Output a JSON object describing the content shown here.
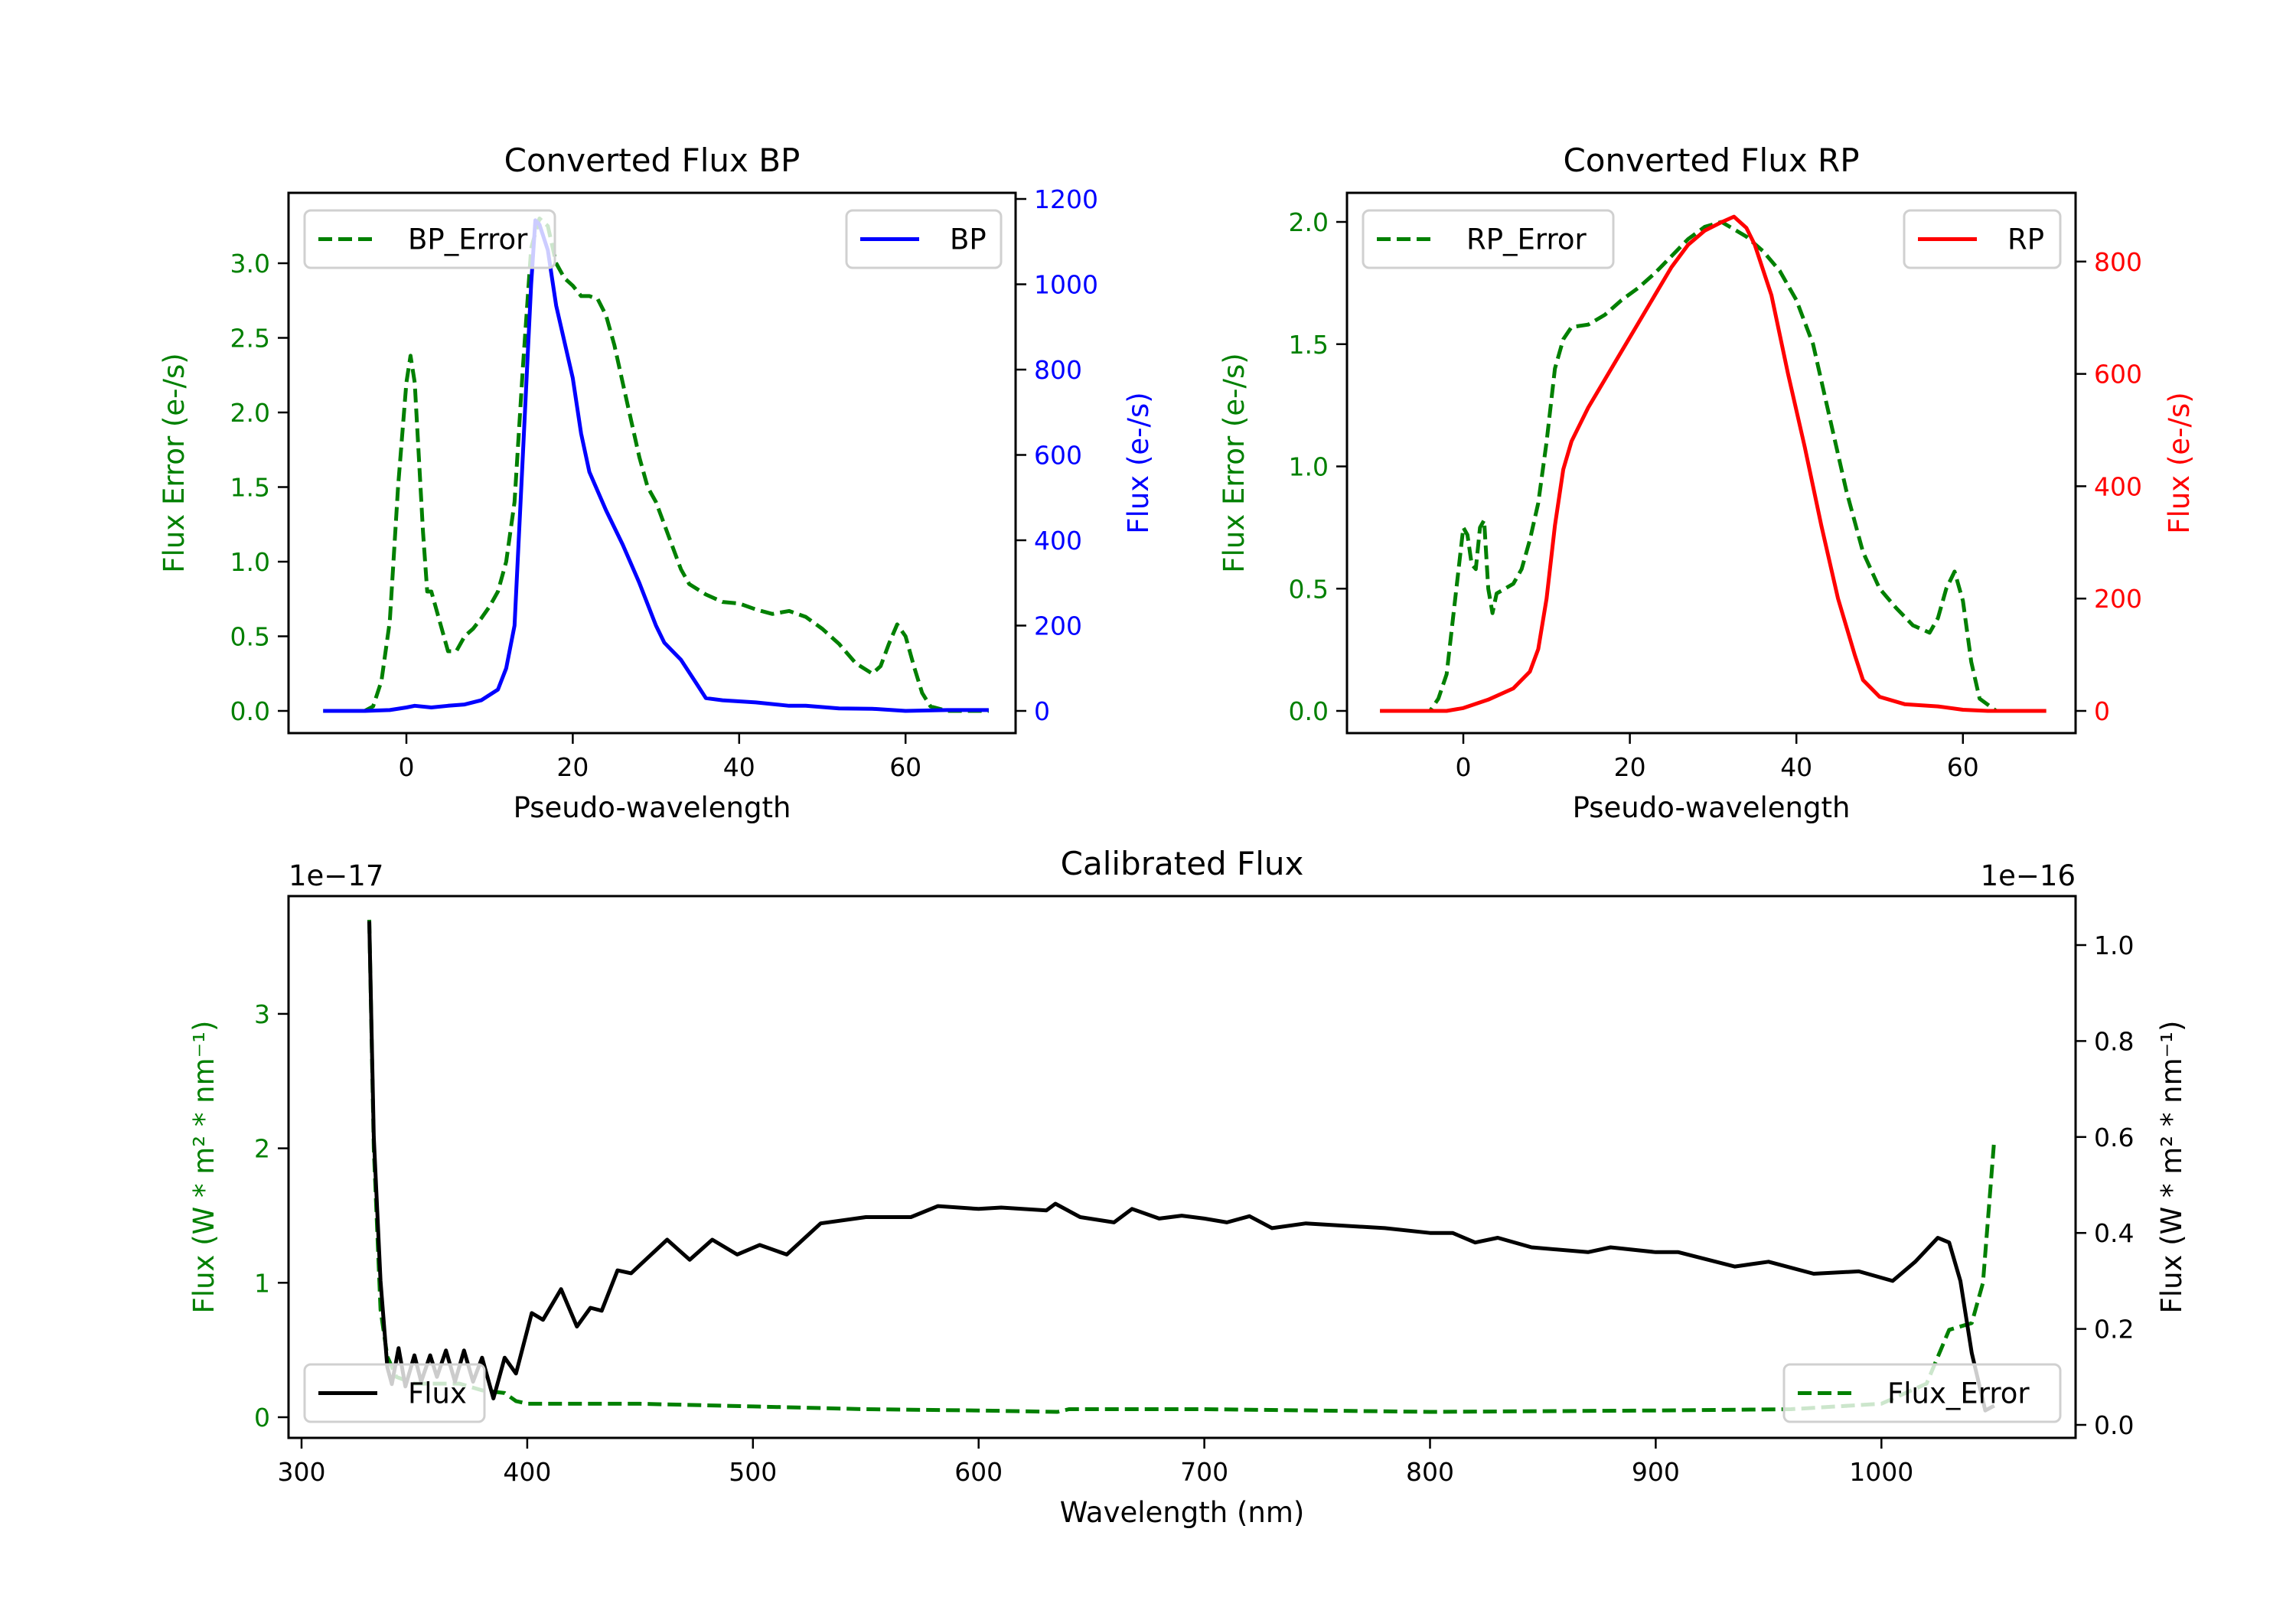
{
  "colors": {
    "error": "#008000",
    "bp": "#0000ff",
    "rp": "#ff0000",
    "flux": "#000000"
  },
  "chart_data": [
    {
      "type": "line",
      "title": "Converted Flux BP",
      "xlabel": "Pseudo-wavelength",
      "ylabel_left": "Flux Error (e-/s)",
      "ylabel_right": "Flux (e-/s)",
      "x_ticks": [
        "0",
        "20",
        "40",
        "60"
      ],
      "x_tick_values": [
        0,
        20,
        40,
        60
      ],
      "y_left_ticks": [
        "0.0",
        "0.5",
        "1.0",
        "1.5",
        "2.0",
        "2.5",
        "3.0"
      ],
      "y_left_tick_values": [
        0,
        0.5,
        1,
        1.5,
        2,
        2.5,
        3
      ],
      "y_right_ticks": [
        "0",
        "200",
        "400",
        "600",
        "800",
        "1000",
        "1200"
      ],
      "y_right_tick_values": [
        0,
        200,
        400,
        600,
        800,
        1000,
        1200
      ],
      "xlim": [
        -12,
        72
      ],
      "legend": [
        {
          "label": "BP_Error",
          "placement": "upper-left"
        },
        {
          "label": "BP",
          "placement": "upper-right"
        }
      ],
      "series": [
        {
          "name": "BP_Error",
          "axis": "left",
          "style": "dashed",
          "color": "#008000",
          "x": [
            -10,
            -5,
            -4,
            -3,
            -2,
            -1,
            0,
            0.5,
            1,
            2,
            2.5,
            3,
            4,
            5,
            6,
            7,
            8,
            9,
            10,
            11,
            12,
            13,
            14,
            15,
            16,
            17,
            18,
            19,
            20,
            21,
            22,
            23,
            24,
            25,
            26,
            27,
            28,
            29,
            30,
            31,
            32,
            33,
            34,
            36,
            38,
            40,
            42,
            44,
            46,
            48,
            50,
            52,
            54,
            56,
            57,
            58,
            59,
            60,
            61,
            62,
            63,
            65,
            70
          ],
          "y": [
            0,
            0,
            0.03,
            0.2,
            0.6,
            1.5,
            2.2,
            2.38,
            2.2,
            1.2,
            0.8,
            0.8,
            0.6,
            0.4,
            0.4,
            0.5,
            0.55,
            0.62,
            0.7,
            0.8,
            1.0,
            1.4,
            2.3,
            3.1,
            3.3,
            3.25,
            3.0,
            2.9,
            2.85,
            2.78,
            2.78,
            2.76,
            2.65,
            2.45,
            2.2,
            1.95,
            1.7,
            1.5,
            1.4,
            1.25,
            1.1,
            0.95,
            0.85,
            0.78,
            0.73,
            0.72,
            0.68,
            0.65,
            0.67,
            0.63,
            0.55,
            0.45,
            0.32,
            0.25,
            0.3,
            0.45,
            0.58,
            0.5,
            0.3,
            0.12,
            0.03,
            0,
            0
          ]
        },
        {
          "name": "BP",
          "axis": "right",
          "style": "solid",
          "color": "#0000ff",
          "x": [
            -10,
            -5,
            -2,
            0,
            1,
            3,
            5,
            7,
            9,
            11,
            12,
            13,
            14,
            15,
            15.5,
            16,
            17,
            18,
            20,
            21,
            22,
            24,
            26,
            28,
            30,
            31,
            32,
            33,
            35,
            36,
            38,
            42,
            46,
            48,
            52,
            56,
            60,
            65,
            70
          ],
          "y": [
            0,
            0,
            2,
            8,
            12,
            8,
            12,
            15,
            25,
            50,
            100,
            200,
            600,
            1000,
            1150,
            1140,
            1080,
            950,
            780,
            650,
            560,
            470,
            390,
            300,
            200,
            160,
            140,
            120,
            60,
            30,
            25,
            20,
            12,
            12,
            6,
            5,
            0,
            2,
            2
          ]
        }
      ]
    },
    {
      "type": "line",
      "title": "Converted Flux RP",
      "xlabel": "Pseudo-wavelength",
      "ylabel_left": "Flux Error (e-/s)",
      "ylabel_right": "Flux (e-/s)",
      "x_ticks": [
        "0",
        "20",
        "40",
        "60"
      ],
      "x_tick_values": [
        0,
        20,
        40,
        60
      ],
      "y_left_ticks": [
        "0.0",
        "0.5",
        "1.0",
        "1.5",
        "2.0"
      ],
      "y_left_tick_values": [
        0,
        0.5,
        1,
        1.5,
        2
      ],
      "y_right_ticks": [
        "0",
        "200",
        "400",
        "600",
        "800"
      ],
      "y_right_tick_values": [
        0,
        200,
        400,
        600,
        800
      ],
      "xlim": [
        -12,
        72
      ],
      "legend": [
        {
          "label": "RP_Error",
          "placement": "upper-left"
        },
        {
          "label": "RP",
          "placement": "upper-right"
        }
      ],
      "series": [
        {
          "name": "RP_Error",
          "axis": "left",
          "style": "dashed",
          "color": "#008000",
          "x": [
            -10,
            -4,
            -3,
            -2,
            -1,
            0,
            0.5,
            1,
            1.5,
            2,
            2.5,
            3,
            3.5,
            4,
            5,
            6,
            7,
            8,
            9,
            10,
            11,
            12,
            13,
            15,
            17,
            19,
            21,
            23,
            25,
            27,
            29,
            31,
            32,
            34,
            36,
            38,
            40,
            42,
            44,
            46,
            48,
            50,
            52,
            54,
            56,
            57,
            58,
            59,
            60,
            61,
            62,
            64,
            70
          ],
          "y": [
            0,
            0,
            0.05,
            0.15,
            0.45,
            0.75,
            0.72,
            0.6,
            0.58,
            0.75,
            0.78,
            0.5,
            0.4,
            0.48,
            0.5,
            0.52,
            0.58,
            0.7,
            0.85,
            1.1,
            1.4,
            1.52,
            1.57,
            1.58,
            1.62,
            1.68,
            1.73,
            1.79,
            1.86,
            1.93,
            1.98,
            2.0,
            1.98,
            1.94,
            1.88,
            1.8,
            1.68,
            1.5,
            1.2,
            0.9,
            0.65,
            0.5,
            0.42,
            0.35,
            0.32,
            0.38,
            0.5,
            0.57,
            0.45,
            0.2,
            0.05,
            0,
            0
          ]
        },
        {
          "name": "RP",
          "axis": "right",
          "style": "solid",
          "color": "#ff0000",
          "x": [
            -10,
            -2,
            0,
            3,
            6,
            8,
            9,
            10,
            11,
            12,
            13,
            15,
            17,
            19,
            21,
            23,
            25,
            27,
            29,
            31,
            32.5,
            34,
            35,
            37,
            39,
            41,
            43,
            45,
            47,
            48,
            50,
            53,
            57,
            60,
            63,
            70
          ],
          "y": [
            0,
            0,
            5,
            20,
            40,
            70,
            110,
            200,
            330,
            430,
            480,
            540,
            590,
            640,
            690,
            740,
            790,
            830,
            855,
            870,
            880,
            860,
            830,
            740,
            600,
            470,
            330,
            200,
            100,
            55,
            25,
            12,
            8,
            2,
            0,
            0
          ]
        }
      ]
    },
    {
      "type": "line",
      "title": "Calibrated Flux",
      "xlabel": "Wavelength (nm)",
      "ylabel_left": "Flux (W * m² * nm⁻¹)",
      "ylabel_right": "Flux (W * m² * nm⁻¹)",
      "offset_left": "1e−17",
      "offset_right": "1e−16",
      "x_ticks": [
        "300",
        "400",
        "500",
        "600",
        "700",
        "800",
        "900",
        "1000"
      ],
      "x_tick_values": [
        300,
        400,
        500,
        600,
        700,
        800,
        900,
        1000
      ],
      "y_left_ticks": [
        "0",
        "1",
        "2",
        "3"
      ],
      "y_left_tick_values": [
        0,
        1,
        2,
        3
      ],
      "y_right_ticks": [
        "0.0",
        "0.2",
        "0.4",
        "0.6",
        "0.8",
        "1.0"
      ],
      "y_right_tick_values": [
        0,
        0.2,
        0.4,
        0.6,
        0.8,
        1.0
      ],
      "xlim": [
        294,
        1090
      ],
      "legend": [
        {
          "label": "Flux",
          "placement": "lower-left"
        },
        {
          "label": "Flux_Error",
          "placement": "lower-right"
        }
      ],
      "series": [
        {
          "name": "Flux_Error",
          "axis": "left",
          "style": "dashed",
          "color": "#008000",
          "x": [
            330,
            332,
            335,
            338,
            342,
            350,
            370,
            380,
            390,
            395,
            400,
            450,
            500,
            550,
            600,
            635,
            640,
            700,
            800,
            900,
            960,
            1000,
            1020,
            1030,
            1040,
            1045,
            1050
          ],
          "y": [
            3.7,
            2.0,
            0.8,
            0.45,
            0.3,
            0.25,
            0.25,
            0.2,
            0.18,
            0.12,
            0.1,
            0.1,
            0.08,
            0.06,
            0.05,
            0.04,
            0.06,
            0.06,
            0.04,
            0.05,
            0.06,
            0.1,
            0.25,
            0.65,
            0.7,
            1.0,
            2.07
          ]
        },
        {
          "name": "Flux",
          "axis": "right",
          "style": "solid",
          "color": "#000000",
          "x": [
            330,
            332,
            335,
            338,
            340,
            343,
            346,
            350,
            353,
            357,
            360,
            364,
            368,
            372,
            376,
            380,
            385,
            390,
            395,
            402,
            407,
            415,
            422,
            428,
            433,
            440,
            446,
            462,
            472,
            482,
            493,
            503,
            515,
            530,
            550,
            570,
            582,
            600,
            610,
            630,
            634,
            645,
            660,
            668,
            680,
            690,
            700,
            710,
            720,
            730,
            745,
            780,
            800,
            810,
            820,
            830,
            845,
            870,
            880,
            900,
            910,
            935,
            950,
            970,
            990,
            1005,
            1015,
            1025,
            1030,
            1035,
            1040,
            1046,
            1050
          ],
          "y": [
            1.05,
            0.6,
            0.3,
            0.12,
            0.085,
            0.16,
            0.08,
            0.145,
            0.09,
            0.145,
            0.1,
            0.155,
            0.09,
            0.155,
            0.09,
            0.14,
            0.055,
            0.14,
            0.107,
            0.233,
            0.219,
            0.283,
            0.205,
            0.244,
            0.238,
            0.322,
            0.316,
            0.386,
            0.344,
            0.386,
            0.355,
            0.375,
            0.355,
            0.42,
            0.433,
            0.433,
            0.456,
            0.45,
            0.453,
            0.447,
            0.461,
            0.433,
            0.422,
            0.45,
            0.43,
            0.436,
            0.43,
            0.422,
            0.435,
            0.41,
            0.42,
            0.41,
            0.4,
            0.4,
            0.38,
            0.39,
            0.37,
            0.36,
            0.37,
            0.36,
            0.36,
            0.33,
            0.34,
            0.315,
            0.32,
            0.3,
            0.34,
            0.39,
            0.38,
            0.3,
            0.15,
            0.03,
            0.04
          ]
        }
      ]
    }
  ]
}
